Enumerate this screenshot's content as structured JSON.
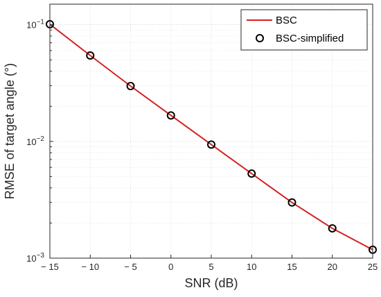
{
  "chart_data": {
    "type": "line",
    "xlabel": "SNR (dB)",
    "ylabel": "RMSE of target angle (°)",
    "x_ticks": [
      -15,
      -10,
      -5,
      0,
      5,
      10,
      15,
      20,
      25
    ],
    "y_scale": "log",
    "ylim": [
      0.001,
      0.15
    ],
    "xlim": [
      -15,
      25
    ],
    "grid": true,
    "legend_position": "top-right",
    "x": [
      -15,
      -10,
      -5,
      0,
      5,
      10,
      15,
      20,
      25
    ],
    "series": [
      {
        "name": "BSC",
        "style": "solid-line",
        "color": "#d62020",
        "values": [
          0.101,
          0.0545,
          0.0298,
          0.0167,
          0.0094,
          0.0053,
          0.003,
          0.0018,
          0.00118
        ]
      },
      {
        "name": "BSC-simplified",
        "style": "circle-markers",
        "color": "#000000",
        "values": [
          0.101,
          0.0545,
          0.0298,
          0.0167,
          0.0094,
          0.0053,
          0.003,
          0.0018,
          0.00118
        ]
      }
    ]
  }
}
